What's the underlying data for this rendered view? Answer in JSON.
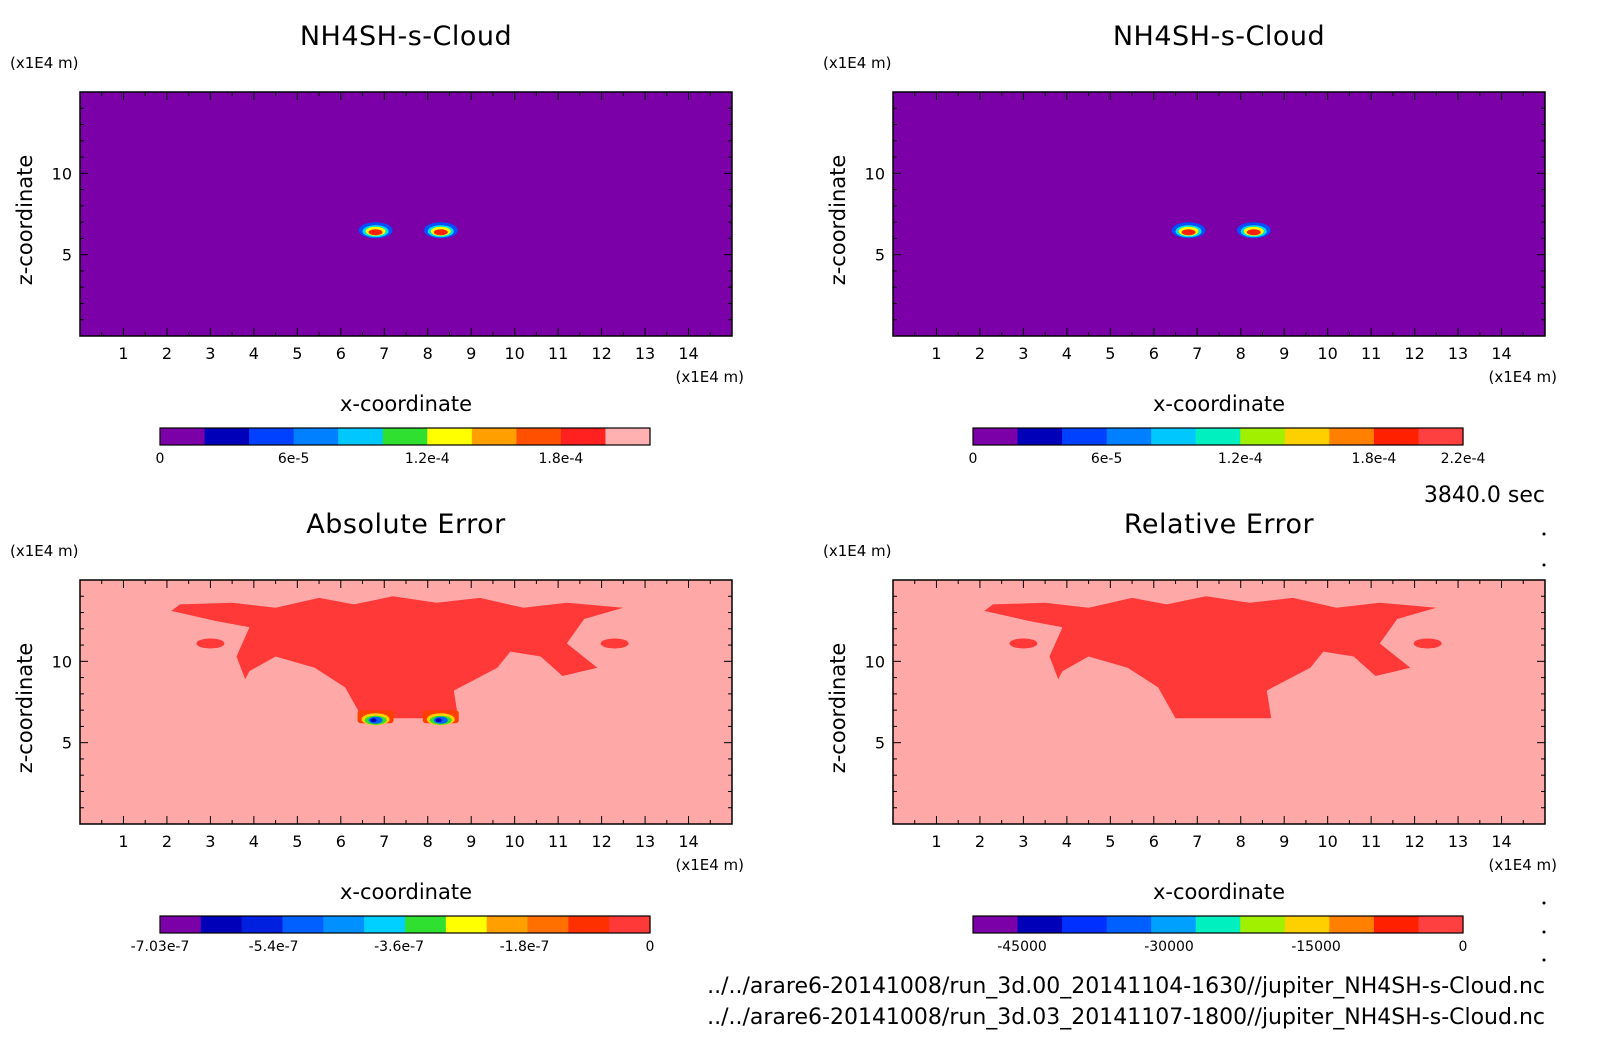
{
  "time_label": "3840.0 sec",
  "files": [
    "../../arare6-20141008/run_3d.00_20141104-1630//jupiter_NH4SH-s-Cloud.nc",
    "../../arare6-20141008/run_3d.03_20141107-1800//jupiter_NH4SH-s-Cloud.nc"
  ],
  "colors": {
    "background_field": "#7b00a8",
    "error_background": "#ffa8a8",
    "error_region": "#ff3838"
  },
  "chart_data": [
    {
      "type": "heatmap",
      "title": "NH4SH-s-Cloud",
      "xlabel": "x-coordinate",
      "ylabel": "z-coordinate",
      "x_unit": "(x1E4 m)",
      "y_unit": "(x1E4 m)",
      "xlim": [
        0,
        15
      ],
      "ylim": [
        0,
        15
      ],
      "xticks": [
        "1",
        "2",
        "3",
        "4",
        "5",
        "6",
        "7",
        "8",
        "9",
        "10",
        "11",
        "12",
        "13",
        "14"
      ],
      "yticks": [
        "5",
        "10"
      ],
      "features": [
        {
          "x": 6.8,
          "z": 6.5,
          "kind": "cloud-blob"
        },
        {
          "x": 8.3,
          "z": 6.5,
          "kind": "cloud-blob"
        }
      ],
      "colorbar": {
        "colors": [
          "#7b00a8",
          "#0000b8",
          "#0040ff",
          "#0080ff",
          "#00c8ff",
          "#30e030",
          "#ffff00",
          "#ffa000",
          "#ff5000",
          "#ff2020",
          "#ffb0b0"
        ],
        "tick_labels": [
          "0",
          "6e-5",
          "1.2e-4",
          "1.8e-4"
        ],
        "tick_values": [
          0,
          6e-05,
          0.00012,
          0.00018
        ],
        "range": [
          0,
          0.00022
        ]
      }
    },
    {
      "type": "heatmap",
      "title": "NH4SH-s-Cloud",
      "xlabel": "x-coordinate",
      "ylabel": "z-coordinate",
      "x_unit": "(x1E4 m)",
      "y_unit": "(x1E4 m)",
      "xlim": [
        0,
        15
      ],
      "ylim": [
        0,
        15
      ],
      "xticks": [
        "1",
        "2",
        "3",
        "4",
        "5",
        "6",
        "7",
        "8",
        "9",
        "10",
        "11",
        "12",
        "13",
        "14"
      ],
      "yticks": [
        "5",
        "10"
      ],
      "features": [
        {
          "x": 6.8,
          "z": 6.5,
          "kind": "cloud-blob"
        },
        {
          "x": 8.3,
          "z": 6.5,
          "kind": "cloud-blob"
        }
      ],
      "colorbar": {
        "colors": [
          "#7b00a8",
          "#0000b8",
          "#0040ff",
          "#0080ff",
          "#00c8ff",
          "#00f0c0",
          "#a0f000",
          "#ffd000",
          "#ff8000",
          "#ff2000",
          "#ff4040"
        ],
        "tick_labels": [
          "0",
          "6e-5",
          "1.2e-4",
          "1.8e-4",
          "2.2e-4"
        ],
        "tick_values": [
          0,
          6e-05,
          0.00012,
          0.00018,
          0.00022
        ],
        "range": [
          0,
          0.00022
        ]
      }
    },
    {
      "type": "heatmap",
      "title": "Absolute Error",
      "xlabel": "x-coordinate",
      "ylabel": "z-coordinate",
      "x_unit": "(x1E4 m)",
      "y_unit": "(x1E4 m)",
      "xlim": [
        0,
        15
      ],
      "ylim": [
        0,
        15
      ],
      "xticks": [
        "1",
        "2",
        "3",
        "4",
        "5",
        "6",
        "7",
        "8",
        "9",
        "10",
        "11",
        "12",
        "13",
        "14"
      ],
      "yticks": [
        "5",
        "10"
      ],
      "features": [
        {
          "x": 6.8,
          "z": 6.5,
          "kind": "error-blob"
        },
        {
          "x": 8.3,
          "z": 6.5,
          "kind": "error-blob"
        }
      ],
      "colorbar": {
        "colors": [
          "#7b00a8",
          "#0000b8",
          "#0020e0",
          "#0060ff",
          "#0090ff",
          "#00d0ff",
          "#30e030",
          "#ffff00",
          "#ffa000",
          "#ff7000",
          "#ff3000",
          "#ff3838"
        ],
        "tick_labels": [
          "-7.03e-7",
          "-5.4e-7",
          "-3.6e-7",
          "-1.8e-7",
          "0"
        ],
        "tick_values": [
          -7.03e-07,
          -5.4e-07,
          -3.6e-07,
          -1.8e-07,
          0
        ],
        "range": [
          -7.03e-07,
          0
        ]
      }
    },
    {
      "type": "heatmap",
      "title": "Relative Error",
      "xlabel": "x-coordinate",
      "ylabel": "z-coordinate",
      "x_unit": "(x1E4 m)",
      "y_unit": "(x1E4 m)",
      "xlim": [
        0,
        15
      ],
      "ylim": [
        0,
        15
      ],
      "xticks": [
        "1",
        "2",
        "3",
        "4",
        "5",
        "6",
        "7",
        "8",
        "9",
        "10",
        "11",
        "12",
        "13",
        "14"
      ],
      "yticks": [
        "5",
        "10"
      ],
      "features": [],
      "colorbar": {
        "colors": [
          "#7b00a8",
          "#0000b8",
          "#0030ff",
          "#0060ff",
          "#00a0ff",
          "#00f0c0",
          "#a0f000",
          "#ffd000",
          "#ff8000",
          "#ff2000",
          "#ff4040"
        ],
        "tick_labels": [
          "-45000",
          "-30000",
          "-15000",
          "0"
        ],
        "tick_values": [
          -45000,
          -30000,
          -15000,
          0
        ],
        "range": [
          -50000,
          0
        ]
      }
    }
  ]
}
